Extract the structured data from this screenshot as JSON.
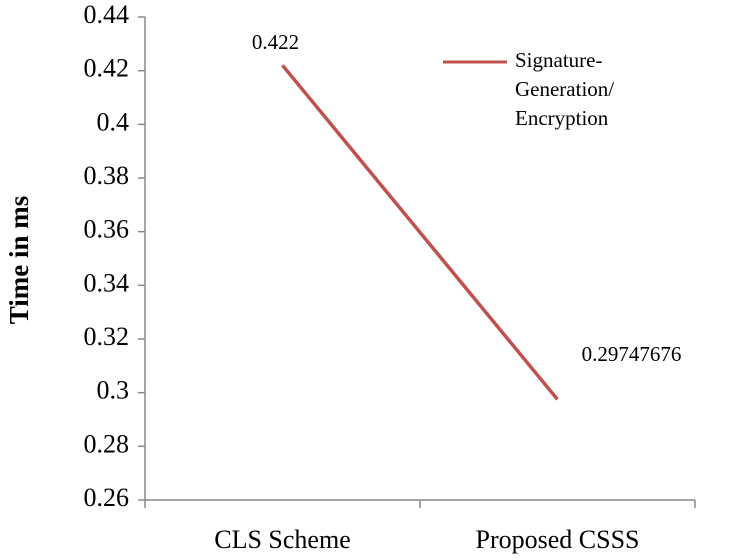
{
  "chart_data": {
    "type": "line",
    "y_label": "Time in ms",
    "categories": [
      "CLS Scheme",
      "Proposed CSSS"
    ],
    "series": [
      {
        "name": "Signature-Generation/ Encryption",
        "color": "#c0504d",
        "values": [
          0.422,
          0.29747676
        ]
      }
    ],
    "ylim": [
      0.26,
      0.44
    ],
    "yticks": [
      0.26,
      0.28,
      0.3,
      0.32,
      0.34,
      0.36,
      0.38,
      0.4,
      0.42,
      0.44
    ],
    "grid": false,
    "legend": "top-right"
  }
}
